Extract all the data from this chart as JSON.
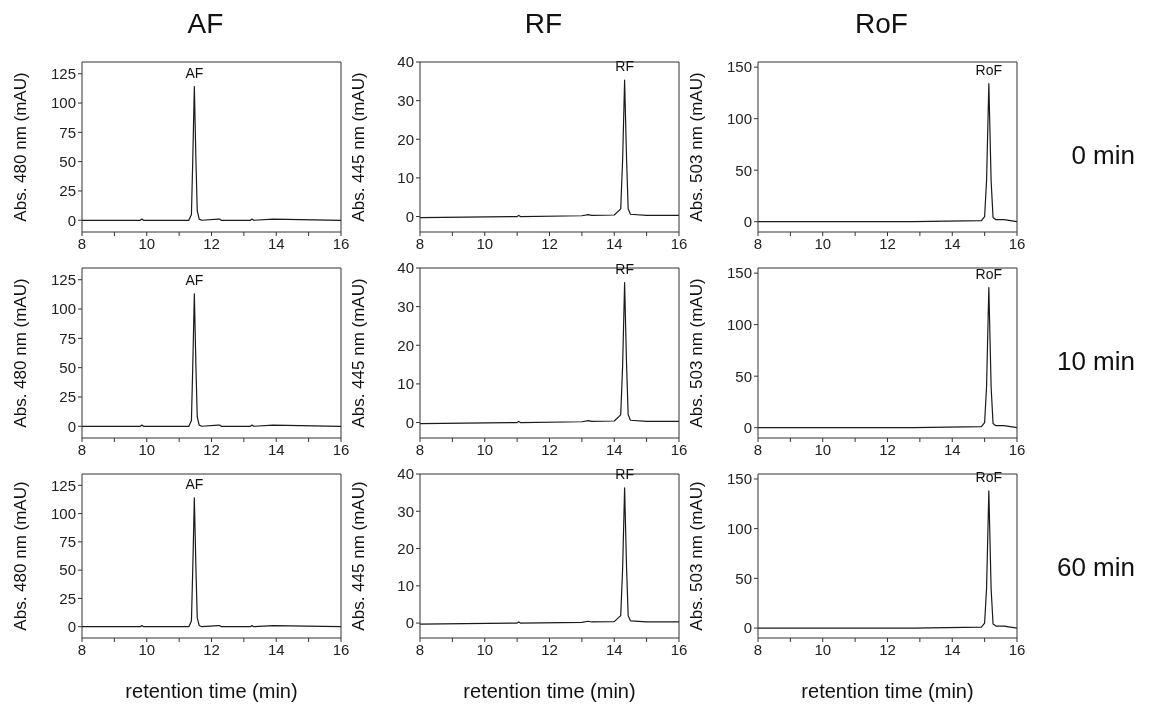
{
  "chart_data": [
    {
      "type": "line",
      "title": "AF",
      "ylabel": "Abs. 480 nm (mAU)",
      "xlim": [
        8,
        16
      ],
      "xticks": [
        8,
        {
          "value": 9,
          "label": null
        },
        10,
        {
          "value": 11,
          "label": null
        },
        12,
        {
          "value": 13,
          "label": null
        },
        14,
        {
          "value": 15,
          "label": null
        },
        16
      ],
      "ylim": [
        -10,
        135
      ],
      "yticks": [
        0,
        25,
        50,
        75,
        100,
        125
      ],
      "marker": "none",
      "line_style": "solid",
      "annotations": [
        {
          "text": "AF",
          "x": 11.47,
          "y": 114
        }
      ],
      "series": [
        {
          "color": "#1a1a1a",
          "x": [
            8,
            9.8,
            9.85,
            9.9,
            10.5,
            11.3,
            11.38,
            11.42,
            11.47,
            11.52,
            11.56,
            11.62,
            11.7,
            12.2,
            12.25,
            12.3,
            13.2,
            13.25,
            13.3,
            13.9,
            16
          ],
          "values": [
            0,
            0,
            1,
            0,
            0,
            0,
            5,
            50,
            114,
            50,
            8,
            1,
            0,
            1,
            1,
            0,
            0,
            1,
            0,
            1,
            0
          ]
        }
      ]
    },
    {
      "type": "line",
      "title": "RF",
      "ylabel": "Abs. 445 nm (mAU)",
      "xlim": [
        8,
        16
      ],
      "xticks": [
        8,
        {
          "value": 9,
          "label": null
        },
        10,
        {
          "value": 11,
          "label": null
        },
        12,
        {
          "value": 13,
          "label": null
        },
        14,
        {
          "value": 15,
          "label": null
        },
        16
      ],
      "ylim": [
        -4,
        40
      ],
      "yticks": [
        0,
        10,
        20,
        30,
        40
      ],
      "marker": "none",
      "line_style": "solid",
      "annotations": [
        {
          "text": "RF",
          "x": 14.32,
          "y": 35.3
        }
      ],
      "series": [
        {
          "color": "#1a1a1a",
          "x": [
            8,
            11,
            11.05,
            11.1,
            13,
            13.2,
            13.3,
            14,
            14.2,
            14.26,
            14.32,
            14.38,
            14.43,
            14.5,
            15,
            16
          ],
          "values": [
            -0.3,
            0,
            0.3,
            0,
            0.2,
            0.5,
            0.3,
            0.4,
            2,
            15,
            35.3,
            15,
            2,
            0.6,
            0.3,
            0.3
          ]
        }
      ]
    },
    {
      "type": "line",
      "title": "RoF",
      "ylabel": "Abs. 503 nm (mAU)",
      "xlim": [
        8,
        16
      ],
      "xticks": [
        8,
        {
          "value": 9,
          "label": null
        },
        10,
        {
          "value": 11,
          "label": null
        },
        12,
        {
          "value": 13,
          "label": null
        },
        14,
        {
          "value": 15,
          "label": null
        },
        16
      ],
      "ylim": [
        -10,
        155
      ],
      "yticks": [
        0,
        50,
        100,
        150
      ],
      "marker": "none",
      "line_style": "solid",
      "annotations": [
        {
          "text": "RoF",
          "x": 15.13,
          "y": 134
        },
        "0 min"
      ],
      "series": [
        {
          "color": "#1a1a1a",
          "x": [
            8,
            12.8,
            14.9,
            15.0,
            15.06,
            15.13,
            15.2,
            15.26,
            15.35,
            15.6,
            16
          ],
          "values": [
            0,
            0,
            1,
            5,
            40,
            134,
            40,
            4,
            2,
            2,
            0
          ]
        }
      ]
    },
    {
      "type": "line",
      "ylabel": "Abs. 480 nm (mAU)",
      "xlim": [
        8,
        16
      ],
      "xticks": [
        8,
        {
          "value": 9,
          "label": null
        },
        10,
        {
          "value": 11,
          "label": null
        },
        12,
        {
          "value": 13,
          "label": null
        },
        14,
        {
          "value": 15,
          "label": null
        },
        16
      ],
      "ylim": [
        -10,
        135
      ],
      "yticks": [
        0,
        25,
        50,
        75,
        100,
        125
      ],
      "marker": "none",
      "line_style": "solid",
      "annotations": [
        {
          "text": "AF",
          "x": 11.47,
          "y": 113
        }
      ],
      "series": [
        {
          "color": "#1a1a1a",
          "x": [
            8,
            9.8,
            9.85,
            9.9,
            10.5,
            11.3,
            11.38,
            11.42,
            11.47,
            11.52,
            11.56,
            11.62,
            11.7,
            12.2,
            12.25,
            12.3,
            13.2,
            13.25,
            13.3,
            13.9,
            16
          ],
          "values": [
            0,
            0,
            1,
            0,
            0,
            0,
            5,
            50,
            113,
            50,
            8,
            1,
            0,
            1,
            1,
            0,
            0,
            1,
            0,
            1,
            0
          ]
        }
      ]
    },
    {
      "type": "line",
      "ylabel": "Abs. 445 nm (mAU)",
      "xlim": [
        8,
        16
      ],
      "xticks": [
        8,
        {
          "value": 9,
          "label": null
        },
        10,
        {
          "value": 11,
          "label": null
        },
        12,
        {
          "value": 13,
          "label": null
        },
        14,
        {
          "value": 15,
          "label": null
        },
        16
      ],
      "ylim": [
        -4,
        40
      ],
      "yticks": [
        0,
        10,
        20,
        30,
        40
      ],
      "marker": "none",
      "line_style": "solid",
      "annotations": [
        {
          "text": "RF",
          "x": 14.32,
          "y": 36.2
        }
      ],
      "series": [
        {
          "color": "#1a1a1a",
          "x": [
            8,
            11,
            11.05,
            11.1,
            13,
            13.2,
            13.3,
            14,
            14.2,
            14.26,
            14.32,
            14.38,
            14.43,
            14.5,
            15,
            16
          ],
          "values": [
            -0.3,
            0,
            0.3,
            0,
            0.2,
            0.5,
            0.3,
            0.4,
            2,
            15,
            36.2,
            15,
            2,
            0.6,
            0.3,
            0.3
          ]
        }
      ]
    },
    {
      "type": "line",
      "ylabel": "Abs. 503 nm (mAU)",
      "xlim": [
        8,
        16
      ],
      "xticks": [
        8,
        {
          "value": 9,
          "label": null
        },
        10,
        {
          "value": 11,
          "label": null
        },
        12,
        {
          "value": 13,
          "label": null
        },
        14,
        {
          "value": 15,
          "label": null
        },
        16
      ],
      "ylim": [
        -10,
        155
      ],
      "yticks": [
        0,
        50,
        100,
        150
      ],
      "marker": "none",
      "line_style": "solid",
      "annotations": [
        {
          "text": "RoF",
          "x": 15.13,
          "y": 136
        },
        "10 min"
      ],
      "series": [
        {
          "color": "#1a1a1a",
          "x": [
            8,
            12.8,
            14.9,
            15.0,
            15.06,
            15.13,
            15.2,
            15.26,
            15.35,
            15.6,
            16
          ],
          "values": [
            0,
            0,
            1,
            5,
            40,
            136,
            40,
            4,
            2,
            2,
            0
          ]
        }
      ]
    },
    {
      "type": "line",
      "xlabel": "retention time (min)",
      "ylabel": "Abs. 480 nm (mAU)",
      "xlim": [
        8,
        16
      ],
      "xticks": [
        8,
        {
          "value": 9,
          "label": null
        },
        10,
        {
          "value": 11,
          "label": null
        },
        12,
        {
          "value": 13,
          "label": null
        },
        14,
        {
          "value": 15,
          "label": null
        },
        16
      ],
      "ylim": [
        -10,
        135
      ],
      "yticks": [
        0,
        25,
        50,
        75,
        100,
        125
      ],
      "marker": "none",
      "line_style": "solid",
      "annotations": [
        {
          "text": "AF",
          "x": 11.47,
          "y": 114
        }
      ],
      "series": [
        {
          "color": "#1a1a1a",
          "x": [
            8,
            9.8,
            9.85,
            9.9,
            10.5,
            11.3,
            11.38,
            11.42,
            11.47,
            11.52,
            11.56,
            11.62,
            11.7,
            12.2,
            12.25,
            12.3,
            13.2,
            13.25,
            13.3,
            13.9,
            16
          ],
          "values": [
            0,
            0,
            1,
            0,
            0,
            0,
            5,
            50,
            114,
            50,
            8,
            1,
            0,
            1,
            1,
            0,
            0,
            1,
            0,
            1,
            0
          ]
        }
      ]
    },
    {
      "type": "line",
      "xlabel": "retention time (min)",
      "ylabel": "Abs. 445 nm (mAU)",
      "xlim": [
        8,
        16
      ],
      "xticks": [
        8,
        {
          "value": 9,
          "label": null
        },
        10,
        {
          "value": 11,
          "label": null
        },
        12,
        {
          "value": 13,
          "label": null
        },
        14,
        {
          "value": 15,
          "label": null
        },
        16
      ],
      "ylim": [
        -4,
        40
      ],
      "yticks": [
        0,
        10,
        20,
        30,
        40
      ],
      "marker": "none",
      "line_style": "solid",
      "annotations": [
        {
          "text": "RF",
          "x": 14.32,
          "y": 36.3
        }
      ],
      "series": [
        {
          "color": "#1a1a1a",
          "x": [
            8,
            11,
            11.05,
            11.1,
            13,
            13.2,
            13.3,
            14,
            14.2,
            14.26,
            14.32,
            14.38,
            14.43,
            14.5,
            15,
            16
          ],
          "values": [
            -0.3,
            0,
            0.3,
            0,
            0.2,
            0.5,
            0.3,
            0.4,
            2,
            15,
            36.3,
            15,
            2,
            0.6,
            0.3,
            0.3
          ]
        }
      ]
    },
    {
      "type": "line",
      "xlabel": "retention time (min)",
      "ylabel": "Abs. 503 nm (mAU)",
      "xlim": [
        8,
        16
      ],
      "xticks": [
        8,
        {
          "value": 9,
          "label": null
        },
        10,
        {
          "value": 11,
          "label": null
        },
        12,
        {
          "value": 13,
          "label": null
        },
        14,
        {
          "value": 15,
          "label": null
        },
        16
      ],
      "ylim": [
        -10,
        155
      ],
      "yticks": [
        0,
        50,
        100,
        150
      ],
      "marker": "none",
      "line_style": "solid",
      "annotations": [
        {
          "text": "RoF",
          "x": 15.13,
          "y": 138
        },
        "60 min"
      ],
      "series": [
        {
          "color": "#1a1a1a",
          "x": [
            8,
            12.8,
            14.9,
            15.0,
            15.06,
            15.13,
            15.2,
            15.26,
            15.35,
            15.6,
            16
          ],
          "values": [
            0,
            0,
            1,
            5,
            40,
            138,
            40,
            4,
            2,
            2,
            0
          ]
        }
      ]
    }
  ]
}
